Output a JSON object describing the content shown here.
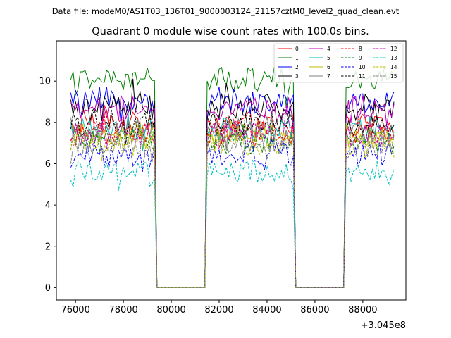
{
  "chart_data": {
    "type": "line",
    "suptitle": "Data file: modeM0/AS1T03_136T01_9000003124_21157cztM0_level2_quad_clean.evt",
    "title": "Quadrant 0 module wise count rates with 100.0s bins.",
    "xlabel": "",
    "ylabel": "",
    "x_offset_label": "+3.045e8",
    "xlim": [
      75200,
      89800
    ],
    "ylim": [
      -0.6,
      11.95
    ],
    "x_ticks": [
      76000,
      78000,
      80000,
      82000,
      84000,
      86000,
      88000
    ],
    "x_tick_labels": [
      "76000",
      "78000",
      "80000",
      "82000",
      "84000",
      "86000",
      "88000"
    ],
    "y_ticks": [
      0,
      2,
      4,
      6,
      8,
      10
    ],
    "y_tick_labels": [
      "0",
      "2",
      "4",
      "6",
      "8",
      "10"
    ],
    "legend_position": "top-right",
    "x_start": 75800,
    "x_step": 100,
    "n_points": 136,
    "on_segments": [
      [
        75800,
        79300
      ],
      [
        81500,
        85100
      ],
      [
        87300,
        89300
      ]
    ],
    "series": [
      {
        "name": "0",
        "color": "#ff0000",
        "dash": "solid",
        "level": 7.9
      },
      {
        "name": "1",
        "color": "#008000",
        "dash": "solid",
        "level": 10.0
      },
      {
        "name": "2",
        "color": "#0000ff",
        "dash": "solid",
        "level": 9.0
      },
      {
        "name": "3",
        "color": "#000000",
        "dash": "solid",
        "level": 8.7
      },
      {
        "name": "4",
        "color": "#bf00bf",
        "dash": "solid",
        "level": 8.6
      },
      {
        "name": "5",
        "color": "#00bfbf",
        "dash": "solid",
        "level": 7.7
      },
      {
        "name": "6",
        "color": "#bfbf00",
        "dash": "solid",
        "level": 7.3
      },
      {
        "name": "7",
        "color": "#808080",
        "dash": "solid",
        "level": 7.6
      },
      {
        "name": "8",
        "color": "#ff0000",
        "dash": "dashed",
        "level": 7.6
      },
      {
        "name": "9",
        "color": "#008000",
        "dash": "dashed",
        "level": 7.2
      },
      {
        "name": "10",
        "color": "#0000ff",
        "dash": "dashed",
        "level": 6.4
      },
      {
        "name": "11",
        "color": "#000000",
        "dash": "dashed",
        "level": 7.9
      },
      {
        "name": "12",
        "color": "#bf00bf",
        "dash": "dashed",
        "level": 7.4
      },
      {
        "name": "13",
        "color": "#00bfbf",
        "dash": "dashed",
        "level": 5.5
      },
      {
        "name": "14",
        "color": "#bfbf00",
        "dash": "dashed",
        "level": 7.0
      },
      {
        "name": "15",
        "color": "#808080",
        "dash": "dashed",
        "level": 6.9
      }
    ]
  }
}
